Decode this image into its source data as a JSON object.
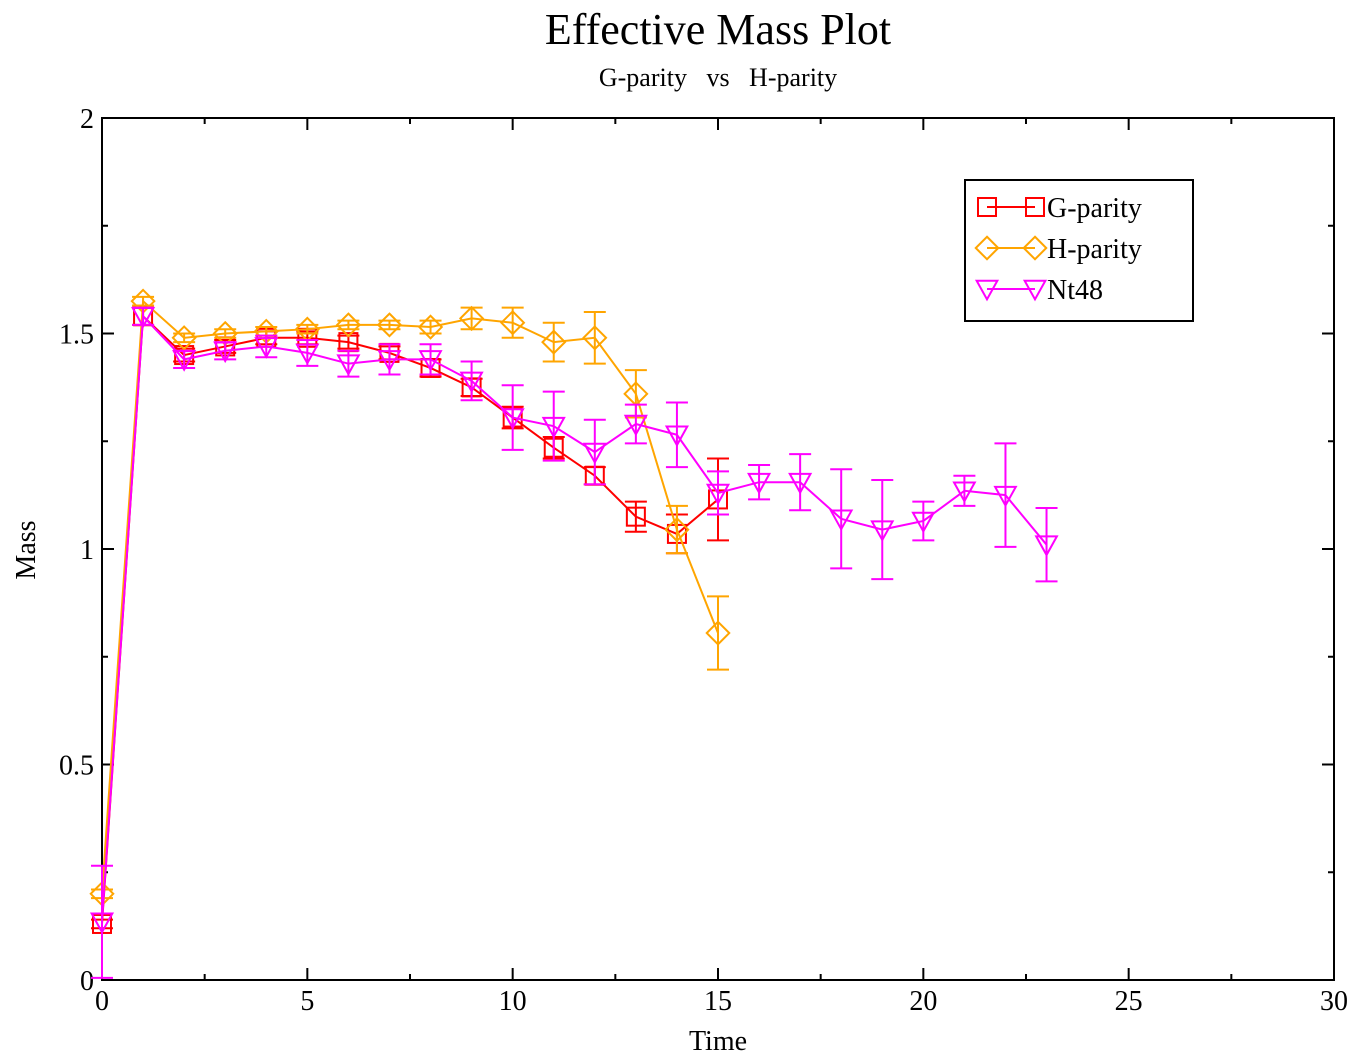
{
  "chart_data": {
    "type": "line",
    "title": "Effective Mass Plot",
    "subtitle": "G-parity   vs   H-parity",
    "xlabel": "Time",
    "ylabel": "Mass",
    "xlim": [
      0,
      30
    ],
    "ylim": [
      0,
      2
    ],
    "x_major_ticks": [
      0,
      5,
      10,
      15,
      20,
      25,
      30
    ],
    "x_tick_labels": [
      "0",
      "5",
      "10",
      "15",
      "20",
      "25",
      "30"
    ],
    "x_minor_ticks": [
      2.5,
      7.5,
      12.5,
      17.5,
      22.5,
      27.5
    ],
    "y_major_ticks": [
      0,
      0.5,
      1,
      1.5,
      2
    ],
    "y_tick_labels": [
      "0",
      "0.5",
      "1",
      "1.5",
      "2"
    ],
    "y_minor_ticks": [
      0.25,
      0.75,
      1.25,
      1.75
    ],
    "grid": false,
    "legend_position": "top-right",
    "series": [
      {
        "name": "G-parity",
        "color": "#ff0000",
        "marker": "square",
        "x": [
          0,
          1,
          2,
          3,
          4,
          5,
          6,
          7,
          8,
          9,
          10,
          11,
          12,
          13,
          14,
          15
        ],
        "y": [
          0.13,
          1.54,
          1.45,
          1.47,
          1.49,
          1.49,
          1.48,
          1.455,
          1.42,
          1.375,
          1.305,
          1.235,
          1.17,
          1.075,
          1.035,
          1.115
        ],
        "err": [
          0.01,
          0.02,
          0.015,
          0.015,
          0.015,
          0.015,
          0.015,
          0.015,
          0.02,
          0.02,
          0.025,
          0.025,
          0.02,
          0.035,
          0.045,
          0.095
        ]
      },
      {
        "name": "H-parity",
        "color": "#ffa500",
        "marker": "diamond",
        "x": [
          0,
          1,
          2,
          3,
          4,
          5,
          6,
          7,
          8,
          9,
          10,
          11,
          12,
          13,
          14,
          15
        ],
        "y": [
          0.2,
          1.575,
          1.49,
          1.5,
          1.505,
          1.51,
          1.52,
          1.52,
          1.515,
          1.535,
          1.525,
          1.48,
          1.49,
          1.36,
          1.045,
          0.805
        ],
        "err": [
          0.01,
          0.01,
          0.01,
          0.01,
          0.01,
          0.01,
          0.01,
          0.01,
          0.015,
          0.025,
          0.035,
          0.045,
          0.06,
          0.055,
          0.055,
          0.085
        ]
      },
      {
        "name": "Nt48",
        "color": "#ff00ff",
        "marker": "triangle-down",
        "x": [
          0,
          1,
          2,
          3,
          4,
          5,
          6,
          7,
          8,
          9,
          10,
          11,
          12,
          13,
          14,
          15,
          16,
          17,
          18,
          19,
          20,
          21,
          22,
          23
        ],
        "y": [
          0.135,
          1.54,
          1.44,
          1.46,
          1.47,
          1.455,
          1.43,
          1.44,
          1.44,
          1.39,
          1.305,
          1.285,
          1.225,
          1.29,
          1.265,
          1.13,
          1.155,
          1.155,
          1.07,
          1.045,
          1.065,
          1.135,
          1.125,
          1.01
        ],
        "err": [
          0.13,
          0.02,
          0.02,
          0.02,
          0.025,
          0.03,
          0.03,
          0.035,
          0.035,
          0.045,
          0.075,
          0.08,
          0.075,
          0.045,
          0.075,
          0.05,
          0.04,
          0.065,
          0.115,
          0.115,
          0.045,
          0.035,
          0.12,
          0.085
        ]
      }
    ]
  }
}
